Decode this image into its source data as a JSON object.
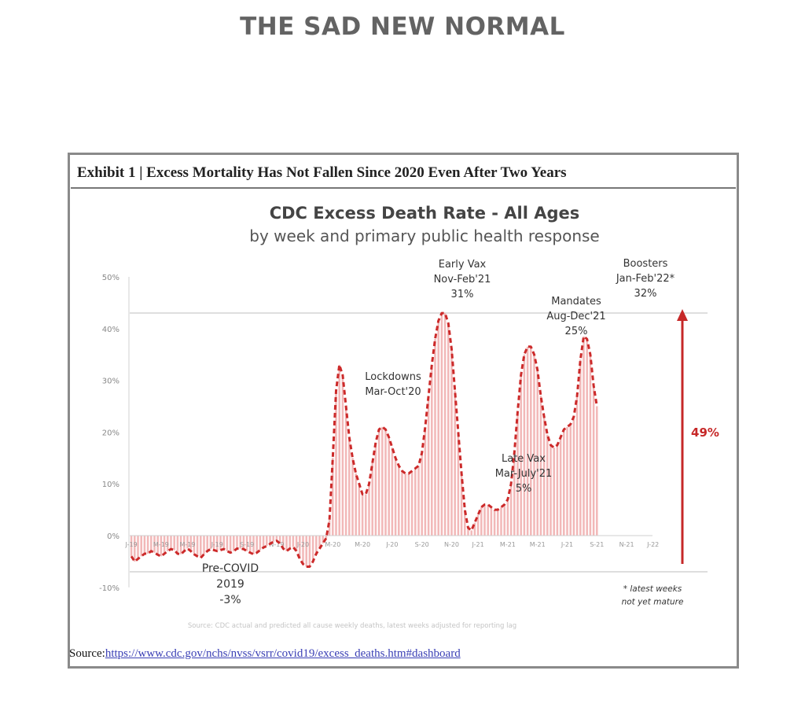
{
  "page_title": "THE SAD NEW NORMAL",
  "exhibit_title": "Exhibit 1 | Excess Mortality Has Not Fallen Since 2020 Even After Two Years",
  "source": {
    "label": "Source:",
    "url_text": "https://www.cdc.gov/nchs/nvss/vsrr/covid19/excess_deaths.htm#dashboard"
  },
  "colors": {
    "bar": "#f2b8b8",
    "line": "#cc2a2a",
    "arrow": "#c62828",
    "grid": "#bdbdbd"
  },
  "chart_data": {
    "type": "bar",
    "title": "CDC Excess Death Rate - All Ages",
    "subtitle": "by week and primary public health response",
    "ylim": [
      -10,
      50
    ],
    "yticks": [
      -10,
      0,
      10,
      20,
      30,
      40,
      50
    ],
    "ytick_labels": [
      "-10%",
      "0%",
      "10%",
      "20%",
      "30%",
      "40%",
      "50%"
    ],
    "reference_lines": [
      43,
      -7
    ],
    "x_ticks": [
      {
        "week": 0,
        "label": "J-19"
      },
      {
        "week": 9,
        "label": "M-19"
      },
      {
        "week": 17,
        "label": "M-19"
      },
      {
        "week": 26,
        "label": "J-19"
      },
      {
        "week": 35,
        "label": "S-19"
      },
      {
        "week": 44,
        "label": "N-19"
      },
      {
        "week": 52,
        "label": "J-20"
      },
      {
        "week": 61,
        "label": "M-20"
      },
      {
        "week": 70,
        "label": "M-20"
      },
      {
        "week": 79,
        "label": "J-20"
      },
      {
        "week": 88,
        "label": "S-20"
      },
      {
        "week": 97,
        "label": "N-20"
      },
      {
        "week": 105,
        "label": "J-21"
      },
      {
        "week": 114,
        "label": "M-21"
      },
      {
        "week": 123,
        "label": "M-21"
      },
      {
        "week": 132,
        "label": "J-21"
      },
      {
        "week": 141,
        "label": "S-21"
      },
      {
        "week": 150,
        "label": "N-21"
      },
      {
        "week": 158,
        "label": "J-22"
      }
    ],
    "series": [
      {
        "values": [
          -4,
          -5,
          -4.5,
          -4,
          -3.5,
          -3.5,
          -3,
          -3.3,
          -3.7,
          -4,
          -3.5,
          -3,
          -2.6,
          -2.8,
          -3.5,
          -3.6,
          -3,
          -2.5,
          -3,
          -3.6,
          -4,
          -4.3,
          -3.6,
          -3,
          -2.6,
          -2.8,
          -3,
          -2.8,
          -2.6,
          -3,
          -3.3,
          -3,
          -2.5,
          -2.5,
          -2.6,
          -3,
          -3.3,
          -3.6,
          -3.3,
          -2.8,
          -2.3,
          -2,
          -1.6,
          -1.2,
          -1,
          -1.5,
          -2.5,
          -3,
          -2.5,
          -2.2,
          -3,
          -4.5,
          -5.5,
          -6,
          -6,
          -5,
          -3.5,
          -2.5,
          -1.5,
          -0.5,
          3,
          15,
          28,
          33,
          31,
          25,
          19,
          15,
          12,
          10,
          8,
          8,
          10,
          14,
          18,
          20.5,
          21,
          20.5,
          19,
          17,
          15,
          13.5,
          12.5,
          12,
          12,
          12.5,
          13,
          13.5,
          16,
          21,
          27,
          33,
          38,
          41.5,
          43,
          43,
          41,
          36,
          28,
          20,
          12,
          5,
          1.5,
          1,
          2.5,
          4,
          5.5,
          6,
          6,
          5.5,
          5,
          5,
          5.5,
          6,
          7,
          10,
          16,
          24,
          31,
          35,
          36.5,
          36.5,
          35,
          32,
          27,
          23,
          19.5,
          17.5,
          17,
          17.5,
          19,
          20.5,
          21,
          21.5,
          23,
          27,
          34,
          38.5,
          38,
          35,
          29,
          25
        ]
      }
    ],
    "annotations": [
      {
        "text": [
          "Pre-COVID",
          "2019",
          "-3%"
        ]
      },
      {
        "text": [
          "Lockdowns",
          "Mar-Oct'20"
        ]
      },
      {
        "text": [
          "Early Vax",
          "Nov-Feb'21",
          "31%"
        ]
      },
      {
        "text": [
          "Late Vax",
          "Mar-July'21",
          "5%"
        ]
      },
      {
        "text": [
          "Mandates",
          "Aug-Dec'21",
          "25%"
        ]
      },
      {
        "text": [
          "Boosters",
          "Jan-Feb'22*",
          "32%"
        ]
      },
      {
        "text": [
          "* latest weeks",
          "not yet mature"
        ]
      }
    ],
    "change_label": "49%",
    "footnote": "Source: CDC actual and predicted all cause weekly deaths, latest weeks adjusted for reporting lag"
  }
}
